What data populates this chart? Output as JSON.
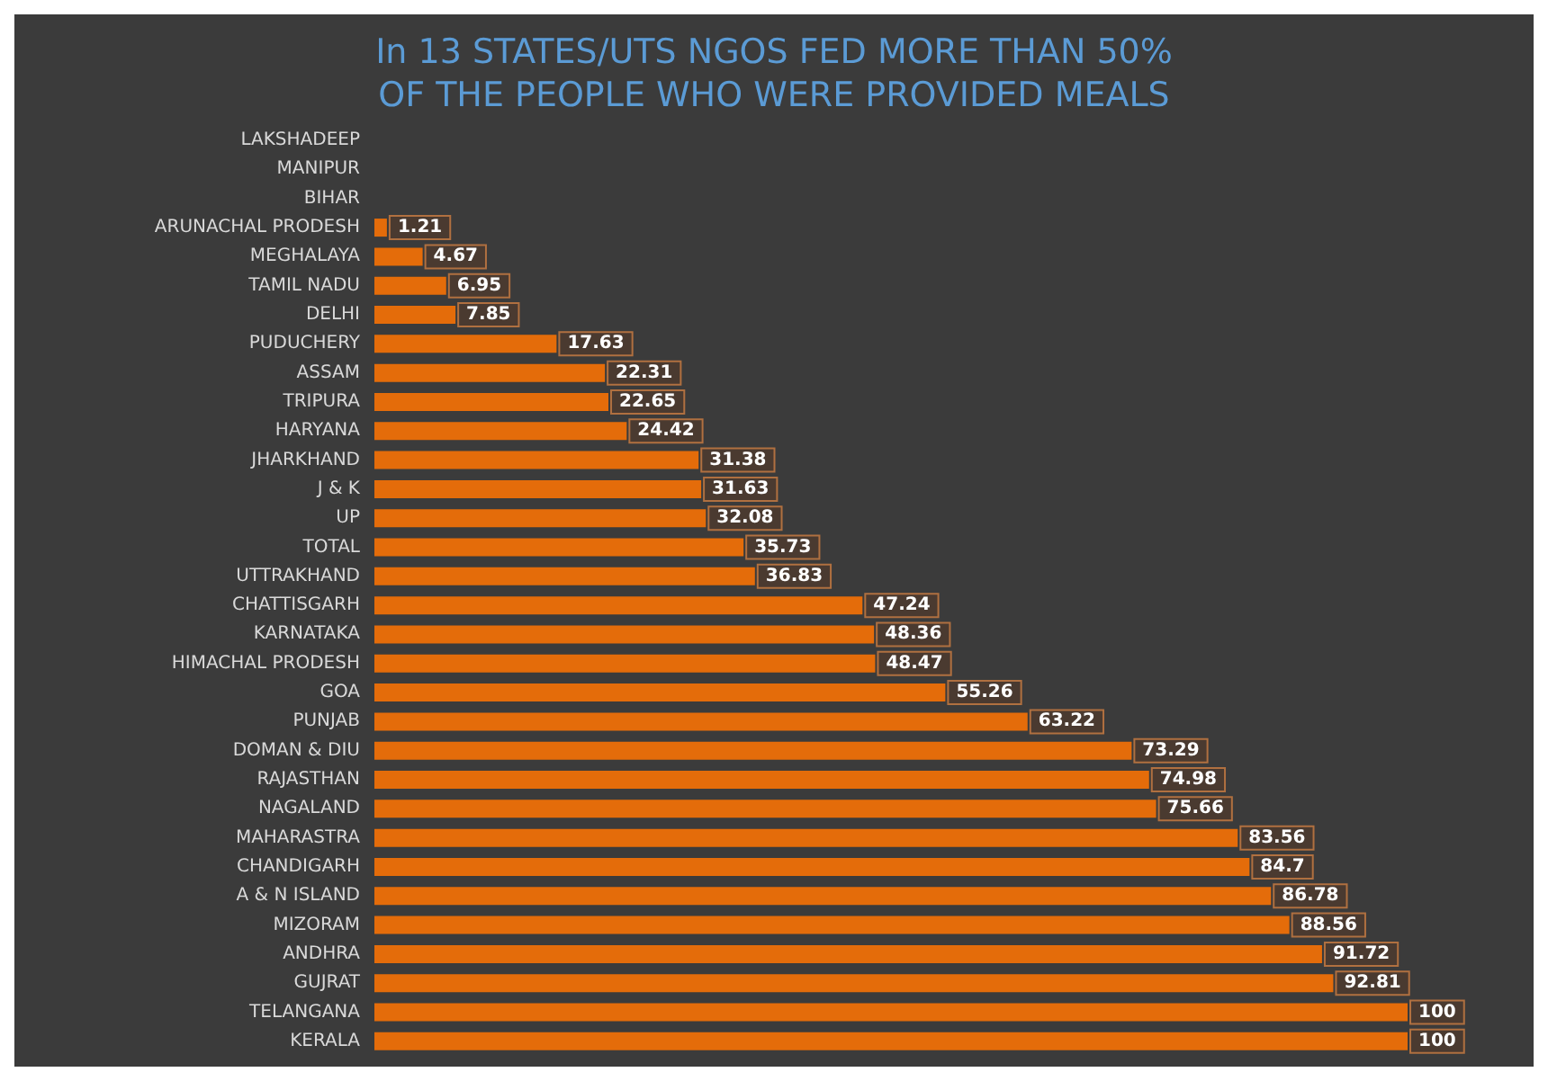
{
  "chart_data": {
    "type": "bar",
    "orientation": "horizontal",
    "title": "In 13 STATES/UTS NGOS FED MORE THAN 50%\nOF THE PEOPLE WHO WERE PROVIDED MEALS",
    "categories": [
      "LAKSHADEEP",
      "MANIPUR",
      "BIHAR",
      "ARUNACHAL PRODESH",
      "MEGHALAYA",
      "TAMIL NADU",
      "DELHI",
      "PUDUCHERY",
      "ASSAM",
      "TRIPURA",
      "HARYANA",
      "JHARKHAND",
      "J & K",
      "UP",
      "TOTAL",
      "UTTRAKHAND",
      "CHATTISGARH",
      "KARNATAKA",
      "HIMACHAL PRODESH",
      "GOA",
      "PUNJAB",
      "DOMAN & DIU",
      "RAJASTHAN",
      "NAGALAND",
      "MAHARASTRA",
      "CHANDIGARH",
      "A & N ISLAND",
      "MIZORAM",
      "ANDHRA",
      "GUJRAT",
      "TELANGANA",
      "KERALA"
    ],
    "values": [
      null,
      null,
      null,
      1.21,
      4.67,
      6.95,
      7.85,
      17.63,
      22.31,
      22.65,
      24.42,
      31.38,
      31.63,
      32.08,
      35.73,
      36.83,
      47.24,
      48.36,
      48.47,
      55.26,
      63.22,
      73.29,
      74.98,
      75.66,
      83.56,
      84.7,
      86.78,
      88.56,
      91.72,
      92.81,
      100,
      100
    ],
    "color": "#e46c0a",
    "data_labels": true,
    "tick_labels": "y",
    "grid": false
  }
}
